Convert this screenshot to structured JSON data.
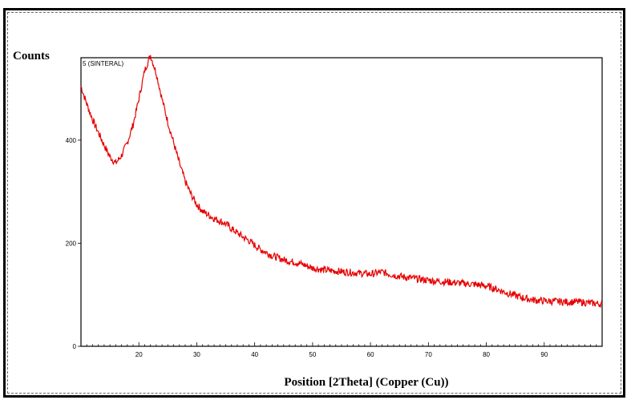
{
  "chart_data": {
    "type": "line",
    "ylabel": "Counts",
    "xlabel": "Position [2Theta] (Copper (Cu))",
    "legend": "5 (SINTERAL)",
    "xlim": [
      10,
      100
    ],
    "ylim": [
      0,
      560
    ],
    "x_ticks": [
      20,
      30,
      40,
      50,
      60,
      70,
      80,
      90
    ],
    "y_ticks": [
      0,
      200,
      400
    ],
    "grid": false,
    "line_color": "#e60000",
    "series": [
      {
        "points": [
          [
            10,
            505
          ],
          [
            11,
            470
          ],
          [
            12,
            440
          ],
          [
            13,
            415
          ],
          [
            14,
            390
          ],
          [
            15,
            368
          ],
          [
            16,
            355
          ],
          [
            17,
            370
          ],
          [
            18,
            395
          ],
          [
            19,
            430
          ],
          [
            20,
            480
          ],
          [
            21,
            535
          ],
          [
            22,
            565
          ],
          [
            23,
            530
          ],
          [
            24,
            480
          ],
          [
            25,
            435
          ],
          [
            26,
            395
          ],
          [
            27,
            355
          ],
          [
            28,
            320
          ],
          [
            29,
            295
          ],
          [
            30,
            275
          ],
          [
            31,
            262
          ],
          [
            32,
            255
          ],
          [
            33,
            248
          ],
          [
            34,
            243
          ],
          [
            35,
            238
          ],
          [
            36,
            228
          ],
          [
            37,
            220
          ],
          [
            38,
            212
          ],
          [
            39,
            205
          ],
          [
            40,
            196
          ],
          [
            41,
            188
          ],
          [
            42,
            182
          ],
          [
            43,
            176
          ],
          [
            44,
            172
          ],
          [
            45,
            168
          ],
          [
            46,
            165
          ],
          [
            47,
            163
          ],
          [
            48,
            160
          ],
          [
            49,
            156
          ],
          [
            50,
            152
          ],
          [
            52,
            148
          ],
          [
            54,
            146
          ],
          [
            56,
            144
          ],
          [
            58,
            142
          ],
          [
            60,
            140
          ],
          [
            62,
            144
          ],
          [
            64,
            138
          ],
          [
            66,
            134
          ],
          [
            68,
            131
          ],
          [
            70,
            128
          ],
          [
            72,
            126
          ],
          [
            74,
            124
          ],
          [
            76,
            122
          ],
          [
            78,
            120
          ],
          [
            80,
            117
          ],
          [
            82,
            110
          ],
          [
            84,
            102
          ],
          [
            86,
            95
          ],
          [
            88,
            90
          ],
          [
            90,
            88
          ],
          [
            92,
            87
          ],
          [
            94,
            86
          ],
          [
            96,
            86
          ],
          [
            98,
            84
          ],
          [
            100,
            82
          ]
        ]
      }
    ]
  }
}
